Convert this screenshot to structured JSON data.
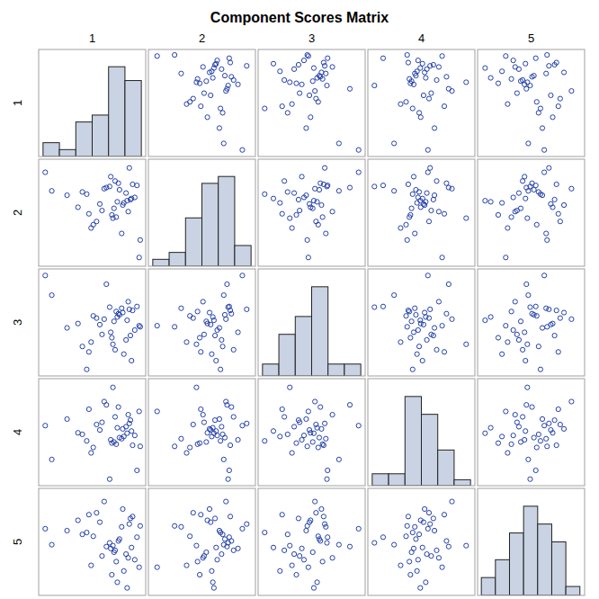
{
  "chart_data": {
    "type": "scatter_matrix",
    "title": "Component Scores Matrix",
    "tick_labels": false,
    "color": "#2340a8",
    "marker": "circle",
    "series": [
      {
        "name": "1",
        "values": [
          0.5,
          -0.3,
          1.1,
          0.2,
          -2.9,
          0.85,
          0.05,
          1.4,
          -1.0,
          0.65,
          0.3,
          -0.7,
          1.2,
          0.95,
          -2.6,
          0.15,
          0.45,
          -1.4,
          0.8,
          0.6,
          -0.2,
          1.05,
          0.35,
          -1.9,
          0.7,
          1.3,
          -0.55,
          0.1,
          0.9,
          -1.2,
          0.4,
          1.45,
          -0.1,
          0.25,
          1.0,
          -0.8,
          -0.4,
          -0.9
        ],
        "lim": [
          -3.2,
          1.7
        ],
        "bins": [
          -3,
          -2.25,
          -1.5,
          -0.75,
          0,
          0.75,
          1.5
        ],
        "counts": [
          2,
          1,
          5,
          6,
          13,
          11
        ],
        "ylim": [
          0,
          15.5
        ]
      },
      {
        "name": "2",
        "values": [
          0.3,
          -0.65,
          0.55,
          -1.0,
          1.1,
          -0.2,
          0.45,
          -2.8,
          0.1,
          -0.4,
          0.7,
          -1.3,
          -0.05,
          1.3,
          0.25,
          -0.85,
          0.6,
          -0.5,
          0.15,
          -1.7,
          0.35,
          -0.1,
          -0.95,
          0.05,
          -0.3,
          0.5,
          -1.15,
          0.9,
          -0.7,
          0.2,
          -0.25,
          -2.0,
          0.4,
          -0.55,
          -0.15,
          -1.45,
          -0.35,
          -0.8
        ],
        "lim": [
          -3.2,
          1.7
        ],
        "bins": [
          -3,
          -2.25,
          -1.5,
          -0.75,
          0,
          0.75,
          1.5
        ],
        "counts": [
          1,
          2,
          7,
          12,
          13,
          3
        ],
        "ylim": [
          0,
          15.5
        ]
      },
      {
        "name": "3",
        "values": [
          0.1,
          -0.8,
          0.3,
          -1.25,
          1.9,
          -0.15,
          0.45,
          -0.4,
          -2.4,
          0.2,
          -1.5,
          0.05,
          -0.6,
          0.35,
          1.0,
          -0.95,
          0.15,
          -0.3,
          -1.05,
          0.4,
          -0.1,
          -2.0,
          0.25,
          -0.5,
          -1.7,
          0.48,
          -0.05,
          -0.7,
          0.7,
          -1.35,
          0,
          -0.45,
          1.5,
          -0.2,
          -0.85,
          -1.15,
          -0.35,
          -1.6
        ],
        "lim": [
          -2.7,
          2.2
        ],
        "bins": [
          -2.5,
          -1.75,
          -1,
          -0.25,
          0.5,
          1.25,
          2
        ],
        "counts": [
          2,
          7,
          10,
          15,
          2,
          2
        ],
        "ylim": [
          0,
          18
        ]
      },
      {
        "name": "4",
        "values": [
          -0.5,
          0.2,
          -0.85,
          1.8,
          0.05,
          -0.3,
          -2.4,
          0.7,
          -0.65,
          -0.1,
          0.45,
          -0.95,
          -0.4,
          0.15,
          -1.5,
          -0.75,
          0.9,
          -0.28,
          0,
          -0.55,
          1.15,
          -0.2,
          -0.8,
          0.35,
          -0.45,
          -2.0,
          0.1,
          -0.6,
          0.55,
          -0.35,
          -0.05,
          -0.9,
          1.0,
          -0.7,
          0.3,
          -1.2,
          -0.15,
          0.8
        ],
        "lim": [
          -2.7,
          2.2
        ],
        "bins": [
          -2.5,
          -1.75,
          -1,
          -0.25,
          0.5,
          1.25,
          2
        ],
        "counts": [
          2,
          2,
          15,
          12,
          6,
          1
        ],
        "ylim": [
          0,
          18
        ]
      },
      {
        "name": "5",
        "values": [
          0.3,
          -0.6,
          1.5,
          -0.05,
          0.85,
          -2.3,
          0.1,
          -1.2,
          0.65,
          1.9,
          -0.3,
          0.45,
          -0.8,
          1.1,
          0,
          -1.6,
          0.2,
          1.3,
          -0.5,
          0.95,
          2.3,
          -0.15,
          -0.9,
          0.75,
          -1.4,
          0.4,
          1.7,
          -0.2,
          -0.7,
          0.55,
          -2.0,
          1.0,
          -0.1,
          -0.4,
          1.4,
          -1.1,
          1.2,
          1.6
        ],
        "lim": [
          -2.7,
          3.0
        ],
        "bins": [
          -2.5,
          -1.75,
          -1,
          -0.25,
          0.5,
          1.25,
          2,
          2.75
        ],
        "counts": [
          2,
          4,
          7,
          10,
          8,
          6,
          1
        ],
        "ylim": [
          0,
          12
        ]
      }
    ]
  }
}
